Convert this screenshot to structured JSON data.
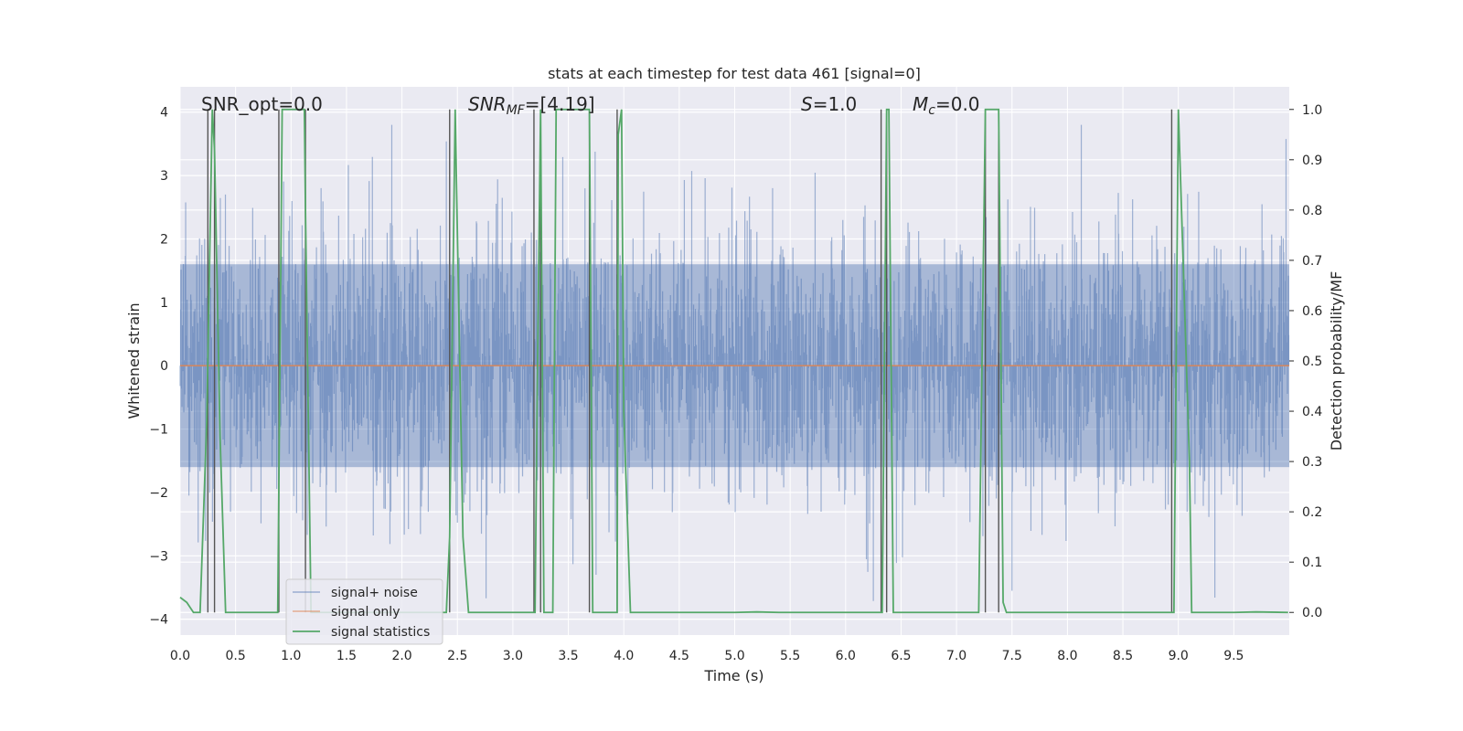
{
  "chart_data": {
    "type": "line",
    "title": "stats at each timestep for test data 461 [signal=0]",
    "xlabel": "Time (s)",
    "ylabel": "Whitened strain",
    "y2label": "Detection probability/MF",
    "xlim": [
      0,
      10
    ],
    "ylim": [
      -4.25,
      4.4
    ],
    "y2lim": [
      -0.045,
      1.045
    ],
    "xticks": [
      "0.0",
      "0.5",
      "1.0",
      "1.5",
      "2.0",
      "2.5",
      "3.0",
      "3.5",
      "4.0",
      "4.5",
      "5.0",
      "5.5",
      "6.0",
      "6.5",
      "7.0",
      "7.5",
      "8.0",
      "8.5",
      "9.0",
      "9.5"
    ],
    "yticks": [
      "4",
      "3",
      "2",
      "1",
      "0",
      "−1",
      "−2",
      "−3",
      "−4"
    ],
    "y2ticks": [
      "1.0",
      "0.9",
      "0.8",
      "0.7",
      "0.6",
      "0.5",
      "0.4",
      "0.3",
      "0.2",
      "0.1",
      "0.0"
    ],
    "grid": true,
    "legend_position": "lower-left",
    "annotations": {
      "snr_opt": "SNR_opt=0.0",
      "snr_mf_main": "SNR",
      "snr_mf_sub": "MF",
      "snr_mf_val": "=[4.19]",
      "s_main": "S",
      "s_val": "=1.0",
      "mc_main": "M",
      "mc_sub": "c",
      "mc_val": "=0.0"
    },
    "series": [
      {
        "name": "signal+ noise",
        "color": "#4c72b0",
        "description_values": "Gaussian noise, roughly -2.5 to 2.5 with spikes up to about +3.8 and down to -4.0",
        "noise_amplitude": 1.0
      },
      {
        "name": "signal only",
        "color": "#dd8452",
        "x": [
          0,
          10
        ],
        "y": [
          0,
          0
        ]
      },
      {
        "name": "signal statistics",
        "color": "#55a868",
        "x": [
          0.0,
          0.06,
          0.12,
          0.15,
          0.18,
          0.24,
          0.29,
          0.31,
          0.36,
          0.41,
          0.44,
          0.6,
          0.8,
          0.88,
          0.92,
          0.95,
          0.98,
          1.12,
          1.13,
          1.18,
          1.22,
          1.6,
          2.0,
          2.4,
          2.43,
          2.48,
          2.5,
          2.55,
          2.6,
          2.65,
          3.0,
          3.2,
          3.22,
          3.25,
          3.28,
          3.3,
          3.36,
          3.39,
          3.43,
          3.5,
          3.6,
          3.69,
          3.72,
          3.8,
          3.9,
          3.94,
          3.95,
          3.98,
          4.0,
          4.06,
          4.12,
          4.6,
          5.0,
          5.2,
          5.4,
          6.0,
          6.3,
          6.33,
          6.37,
          6.39,
          6.43,
          6.8,
          7.2,
          7.26,
          7.29,
          7.35,
          7.38,
          7.42,
          7.45,
          7.55,
          8.0,
          8.5,
          8.92,
          8.96,
          9.0,
          9.1,
          9.12,
          9.5,
          9.7,
          9.99
        ],
        "y": [
          0.03,
          0.02,
          0.0,
          0.0,
          0.0,
          0.38,
          1.0,
          0.92,
          0.35,
          0.0,
          0.0,
          0.0,
          0.0,
          0.0,
          1.0,
          1.0,
          1.0,
          1.0,
          0.8,
          0.0,
          0.0,
          0.0,
          0.0,
          0.0,
          0.15,
          1.0,
          0.75,
          0.15,
          0.0,
          0.0,
          0.0,
          0.0,
          0.45,
          1.0,
          0.0,
          0.0,
          0.0,
          1.0,
          1.0,
          1.0,
          1.0,
          1.0,
          0.0,
          0.0,
          0.0,
          0.0,
          0.95,
          1.0,
          0.4,
          0.0,
          0.0,
          0.0,
          0.0,
          0.001,
          0.0,
          0.0,
          0.0,
          0.0,
          1.0,
          1.0,
          0.0,
          0.0,
          0.0,
          1.0,
          1.0,
          1.0,
          1.0,
          0.02,
          0.0,
          0.0,
          0.0,
          0.0,
          0.0,
          0.0,
          1.0,
          0.3,
          0.0,
          0.0,
          0.001,
          0.0
        ]
      }
    ],
    "vertical_lines_x": [
      0.25,
      0.31,
      0.89,
      1.13,
      2.43,
      3.19,
      3.25,
      3.69,
      3.94,
      6.32,
      6.37,
      7.26,
      7.38,
      8.94
    ]
  }
}
